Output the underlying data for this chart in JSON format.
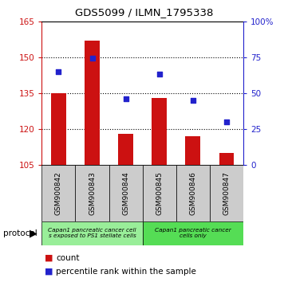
{
  "title": "GDS5099 / ILMN_1795338",
  "samples": [
    "GSM900842",
    "GSM900843",
    "GSM900844",
    "GSM900845",
    "GSM900846",
    "GSM900847"
  ],
  "counts": [
    135,
    157,
    118,
    133,
    117,
    110
  ],
  "percentiles": [
    65,
    74,
    46,
    63,
    45,
    30
  ],
  "ylim_left": [
    105,
    165
  ],
  "ylim_right": [
    0,
    100
  ],
  "yticks_left": [
    105,
    120,
    135,
    150,
    165
  ],
  "yticks_right": [
    0,
    25,
    50,
    75,
    100
  ],
  "ytick_labels_right": [
    "0",
    "25",
    "50",
    "75",
    "100%"
  ],
  "bar_color": "#cc1111",
  "dot_color": "#2222cc",
  "bar_bottom": 105,
  "left_axis_color": "#cc1111",
  "right_axis_color": "#2222cc",
  "background_color": "#ffffff",
  "plot_bg": "#ffffff",
  "xtick_bg": "#cccccc",
  "protocol_color_left": "#88ee88",
  "protocol_color_right": "#55dd55",
  "protocol_label_left": "Capan1 pancreatic cancer cell\ns exposed to PS1 stellate cells",
  "protocol_label_right": "Capan1 pancreatic cancer\ncells only",
  "legend_count_label": "count",
  "legend_pct_label": "percentile rank within the sample",
  "protocol_text": "protocol"
}
